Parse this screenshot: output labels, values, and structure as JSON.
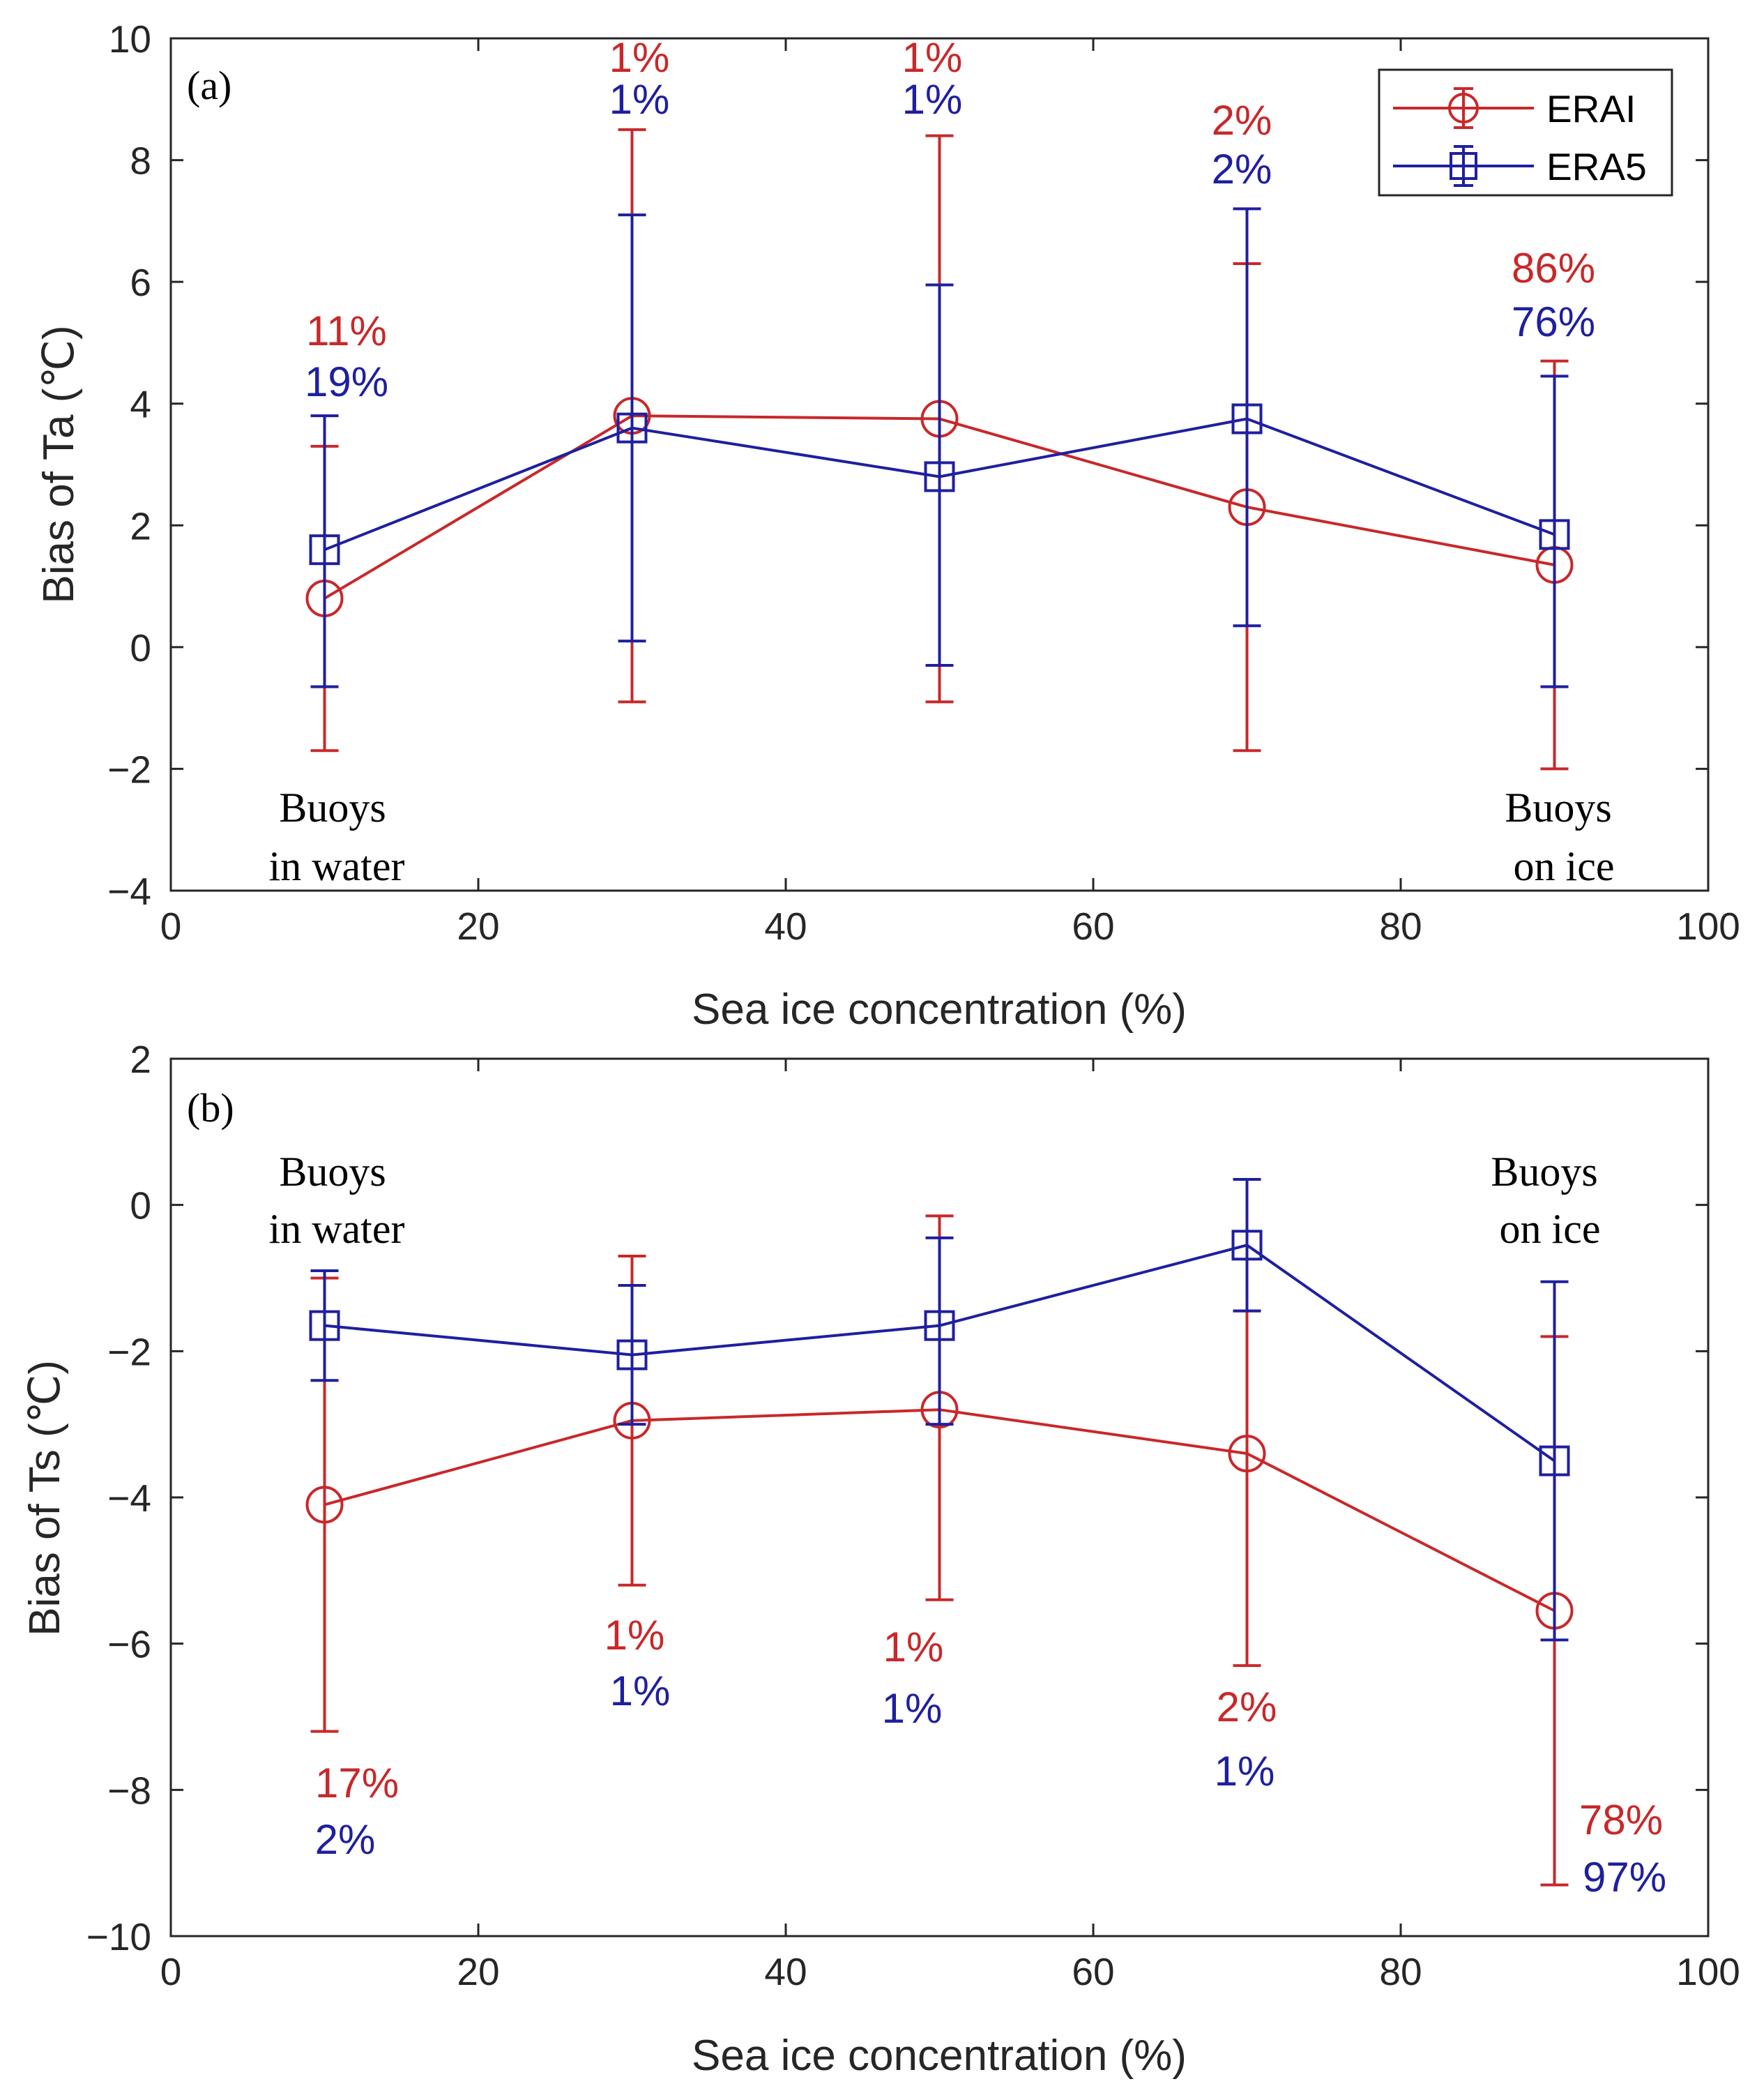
{
  "colors": {
    "erai": "#c8282a",
    "era5": "#1f1fa0",
    "axis": "#262626"
  },
  "legend": {
    "erai": "ERAI",
    "era5": "ERA5",
    "placement": "top-right of panel (a)"
  },
  "chart_data": [
    {
      "type": "line",
      "panel": "(a)",
      "xlabel": "Sea ice concentration (%)",
      "ylabel": "Bias of Ta (℃)",
      "xlim": [
        0,
        100
      ],
      "ylim": [
        -4,
        10
      ],
      "xticks": [
        "0",
        "20",
        "40",
        "60",
        "80",
        "100"
      ],
      "yticks": [
        "−4",
        "−2",
        "0",
        "2",
        "4",
        "6",
        "8",
        "10"
      ],
      "x": [
        10,
        30,
        50,
        70,
        90
      ],
      "series": [
        {
          "name": "ERAI",
          "marker": "circle",
          "values": [
            0.8,
            3.8,
            3.75,
            2.3,
            1.35
          ],
          "err_low": [
            -1.7,
            -0.9,
            -0.9,
            -1.7,
            -2.0
          ],
          "err_high": [
            3.3,
            8.5,
            8.4,
            6.3,
            4.7
          ],
          "pct_labels": [
            "11%",
            "1%",
            "1%",
            "2%",
            "86%"
          ]
        },
        {
          "name": "ERA5",
          "marker": "square",
          "values": [
            1.6,
            3.6,
            2.8,
            3.75,
            1.85
          ],
          "err_low": [
            -0.65,
            0.1,
            -0.3,
            0.35,
            -0.65
          ],
          "err_high": [
            3.8,
            7.1,
            5.95,
            7.2,
            4.45
          ],
          "pct_labels": [
            "19%",
            "1%",
            "1%",
            "2%",
            "76%"
          ]
        }
      ],
      "annotations": {
        "left_top": "Buoys",
        "left_bottom": "in water",
        "right_top": "Buoys",
        "right_bottom": "on ice"
      }
    },
    {
      "type": "line",
      "panel": "(b)",
      "xlabel": "Sea ice concentration (%)",
      "ylabel": "Bias of Ts (℃)",
      "xlim": [
        0,
        100
      ],
      "ylim": [
        -10,
        2
      ],
      "xticks": [
        "0",
        "20",
        "40",
        "60",
        "80",
        "100"
      ],
      "yticks": [
        "−10",
        "−8",
        "−6",
        "−4",
        "−2",
        "0",
        "2"
      ],
      "x": [
        10,
        30,
        50,
        70,
        90
      ],
      "series": [
        {
          "name": "ERAI",
          "marker": "circle",
          "values": [
            -4.1,
            -2.95,
            -2.8,
            -3.4,
            -5.55
          ],
          "err_low": [
            -7.2,
            -5.2,
            -5.4,
            -6.3,
            -9.3
          ],
          "err_high": [
            -1.0,
            -0.7,
            -0.15,
            -1.45,
            -1.8
          ],
          "pct_labels": [
            "17%",
            "1%",
            "1%",
            "2%",
            "78%"
          ]
        },
        {
          "name": "ERA5",
          "marker": "square",
          "values": [
            -1.65,
            -2.05,
            -1.65,
            -0.55,
            -3.5
          ],
          "err_low": [
            -2.4,
            -3.0,
            -3.0,
            -1.45,
            -5.95
          ],
          "err_high": [
            -0.9,
            -1.1,
            -0.45,
            0.35,
            -1.05
          ],
          "pct_labels": [
            "2%",
            "1%",
            "1%",
            "1%",
            "97%"
          ]
        }
      ],
      "annotations": {
        "left_top": "Buoys",
        "left_bottom": "in water",
        "right_top": "Buoys",
        "right_bottom": "on ice"
      }
    }
  ]
}
